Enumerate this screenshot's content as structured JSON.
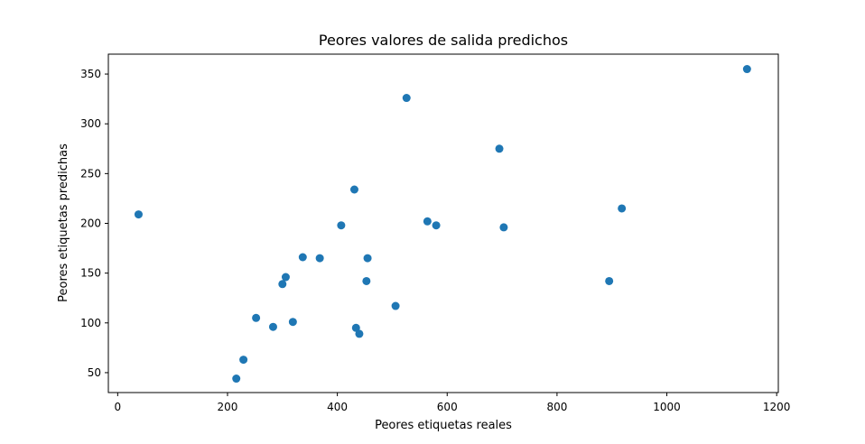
{
  "chart_data": {
    "type": "scatter",
    "title": "Peores valores de salida predichos",
    "xlabel": "Peores etiquetas reales",
    "ylabel": "Peores etiquetas predichas",
    "xlim": [
      -17,
      1203
    ],
    "ylim": [
      30,
      370
    ],
    "x_ticks": [
      0,
      200,
      400,
      600,
      800,
      1000,
      1200
    ],
    "y_ticks": [
      50,
      100,
      150,
      200,
      250,
      300,
      350
    ],
    "grid": false,
    "marker_color": "#1f77b4",
    "series": [
      {
        "points": [
          {
            "x": 38,
            "y": 209
          },
          {
            "x": 216,
            "y": 44
          },
          {
            "x": 229,
            "y": 63
          },
          {
            "x": 252,
            "y": 105
          },
          {
            "x": 283,
            "y": 96
          },
          {
            "x": 300,
            "y": 139
          },
          {
            "x": 306,
            "y": 146
          },
          {
            "x": 319,
            "y": 101
          },
          {
            "x": 337,
            "y": 166
          },
          {
            "x": 368,
            "y": 165
          },
          {
            "x": 407,
            "y": 198
          },
          {
            "x": 431,
            "y": 234
          },
          {
            "x": 434,
            "y": 95
          },
          {
            "x": 440,
            "y": 89
          },
          {
            "x": 453,
            "y": 142
          },
          {
            "x": 455,
            "y": 165
          },
          {
            "x": 506,
            "y": 117
          },
          {
            "x": 526,
            "y": 326
          },
          {
            "x": 564,
            "y": 202
          },
          {
            "x": 580,
            "y": 198
          },
          {
            "x": 695,
            "y": 275
          },
          {
            "x": 703,
            "y": 196
          },
          {
            "x": 895,
            "y": 142
          },
          {
            "x": 918,
            "y": 215
          },
          {
            "x": 1146,
            "y": 355
          }
        ]
      }
    ]
  }
}
